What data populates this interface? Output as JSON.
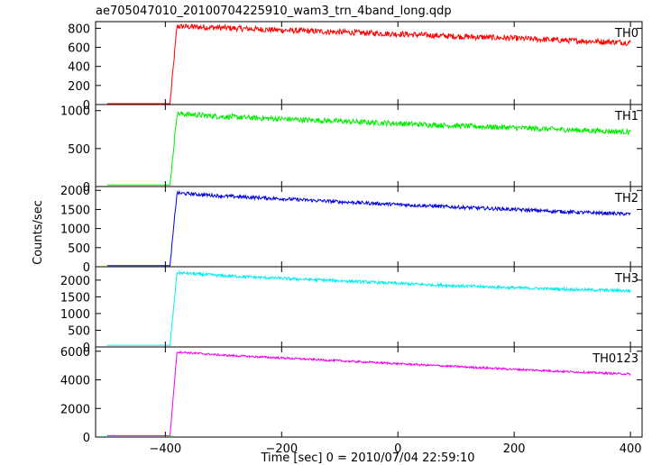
{
  "chart_data": {
    "type": "line",
    "title": "ae705047010_20100704225910_wam3_trn_4band_long.qdp",
    "xlabel": "Time [sec] 0 = 2010/07/04 22:59:10",
    "ylabel": "Counts/sec",
    "xlim": [
      -520,
      420
    ],
    "xticks": [
      -400,
      -200,
      0,
      200,
      400
    ],
    "xtick_labels": [
      "−400",
      "−200",
      "0",
      "200",
      "400"
    ],
    "grid": false,
    "panels": [
      {
        "name": "TH0",
        "color": "#ff0000",
        "ylim": [
          0,
          870
        ],
        "yticks": [
          0,
          200,
          400,
          600,
          800
        ],
        "ytick_labels": [
          "0",
          "200",
          "400",
          "600",
          "800"
        ],
        "x": [
          -500,
          -395,
          -392,
          -380,
          -300,
          -200,
          -100,
          0,
          100,
          200,
          300,
          400
        ],
        "y": [
          10,
          10,
          10,
          820,
          805,
          780,
          760,
          740,
          715,
          695,
          670,
          650
        ],
        "noise": 30
      },
      {
        "name": "TH1",
        "color": "#00ee00",
        "ylim": [
          0,
          1080
        ],
        "yticks": [
          0,
          500,
          1000
        ],
        "ytick_labels": [
          "0",
          "500",
          "1000"
        ],
        "x": [
          -500,
          -395,
          -392,
          -380,
          -300,
          -200,
          -100,
          0,
          100,
          200,
          300,
          400
        ],
        "y": [
          20,
          20,
          20,
          960,
          920,
          890,
          860,
          830,
          800,
          775,
          745,
          720
        ],
        "noise": 35
      },
      {
        "name": "TH2",
        "color": "#0000dd",
        "ylim": [
          0,
          2100
        ],
        "yticks": [
          0,
          500,
          1000,
          1500,
          2000
        ],
        "ytick_labels": [
          "0",
          "500",
          "1000",
          "1500",
          "2000"
        ],
        "x": [
          -500,
          -395,
          -392,
          -380,
          -300,
          -200,
          -100,
          0,
          100,
          200,
          300,
          400
        ],
        "y": [
          30,
          30,
          30,
          1930,
          1850,
          1780,
          1700,
          1630,
          1560,
          1500,
          1430,
          1380
        ],
        "noise": 45
      },
      {
        "name": "TH3",
        "color": "#00eeee",
        "ylim": [
          0,
          2400
        ],
        "yticks": [
          0,
          500,
          1000,
          1500,
          2000
        ],
        "ytick_labels": [
          "0",
          "500",
          "1000",
          "1500",
          "2000"
        ],
        "x": [
          -500,
          -395,
          -392,
          -380,
          -300,
          -200,
          -100,
          0,
          100,
          200,
          300,
          400
        ],
        "y": [
          50,
          50,
          50,
          2220,
          2130,
          2050,
          1980,
          1900,
          1830,
          1770,
          1720,
          1680
        ],
        "noise": 45
      },
      {
        "name": "TH0123",
        "color": "#ee00ee",
        "ylim": [
          0,
          6300
        ],
        "yticks": [
          0,
          2000,
          4000,
          6000
        ],
        "ytick_labels": [
          "0",
          "2000",
          "4000",
          "6000"
        ],
        "x": [
          -500,
          -395,
          -392,
          -380,
          -300,
          -200,
          -100,
          0,
          100,
          200,
          300,
          400
        ],
        "y": [
          100,
          100,
          100,
          5950,
          5720,
          5530,
          5330,
          5130,
          4930,
          4740,
          4560,
          4400
        ],
        "noise": 70
      }
    ]
  }
}
